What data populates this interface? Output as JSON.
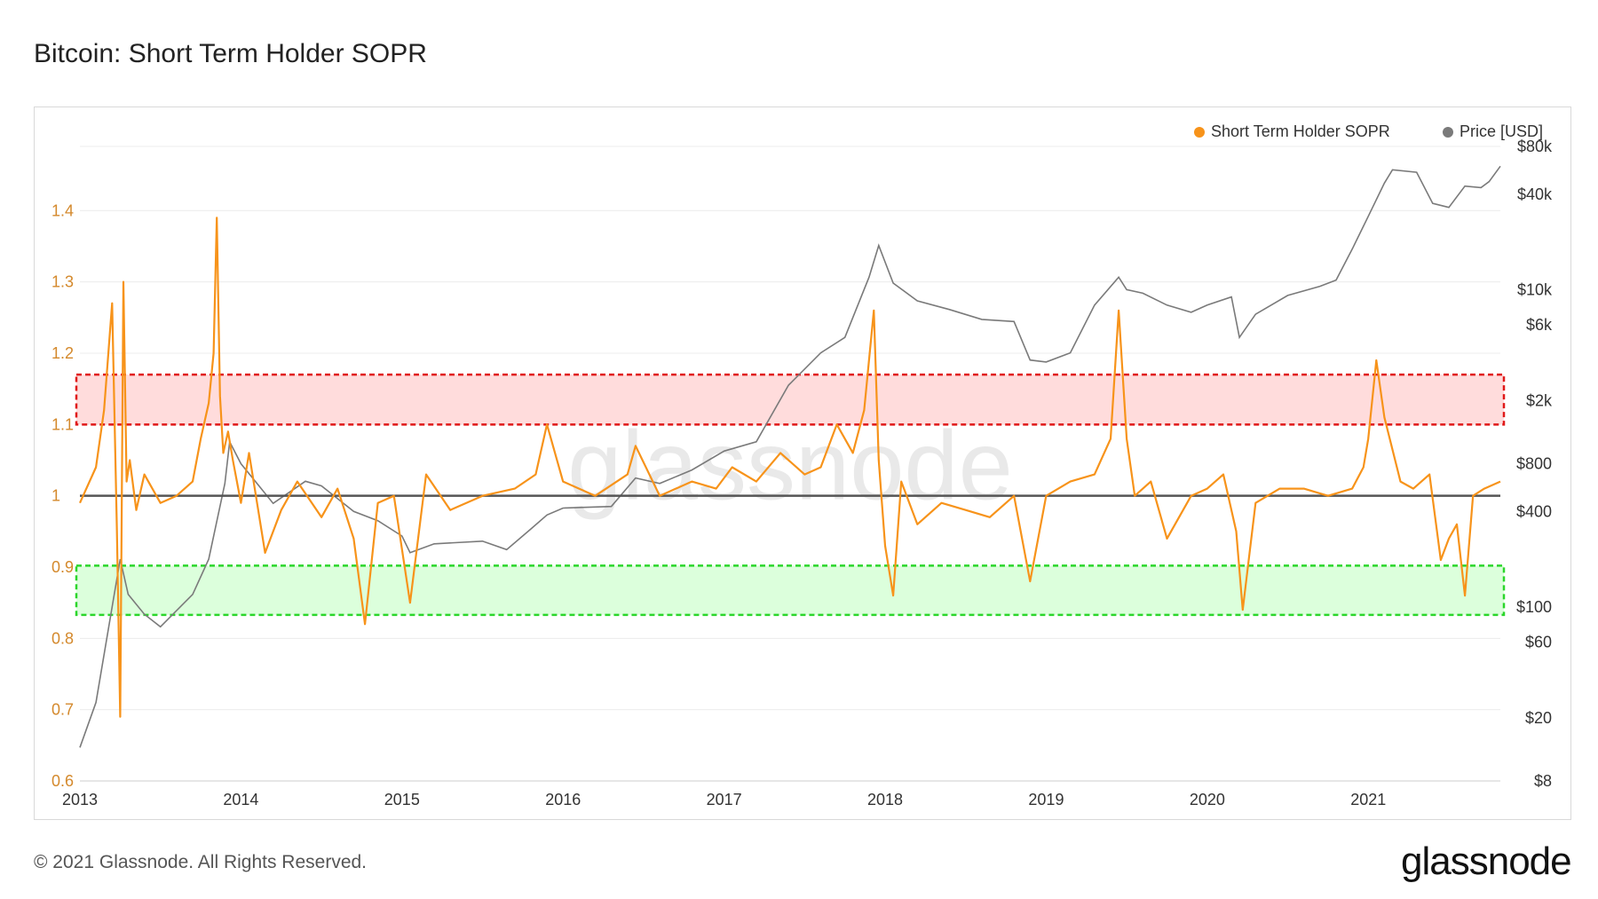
{
  "title": "Bitcoin: Short Term Holder SOPR",
  "legend": {
    "sopr_label": "Short Term Holder SOPR",
    "price_label": "Price [USD]"
  },
  "footer": {
    "copyright": "© 2021 Glassnode. All Rights Reserved.",
    "logo_text": "glassnode"
  },
  "watermark": "glassnode",
  "colors": {
    "sopr": "#f7931a",
    "price": "#7a7a7a",
    "baseline": "#555555",
    "sell_band_fill": "#ffd6d6",
    "sell_band_border": "#e01818",
    "buy_band_fill": "#d6ffd6",
    "buy_band_border": "#2bd62b",
    "grid": "#ececec"
  },
  "chart_data": {
    "type": "line",
    "title": "Bitcoin: Short Term Holder SOPR",
    "x_ticks": [
      "2013",
      "2014",
      "2015",
      "2016",
      "2017",
      "2018",
      "2019",
      "2020",
      "2021"
    ],
    "x_range": [
      2013.0,
      2021.82
    ],
    "y_left": {
      "ticks": [
        "0.6",
        "0.7",
        "0.8",
        "0.9",
        "1",
        "1.1",
        "1.2",
        "1.3",
        "1.4"
      ],
      "range": [
        0.6,
        1.49
      ]
    },
    "y_right": {
      "scale": "log",
      "ticks": [
        "$8",
        "$20",
        "$60",
        "$100",
        "$400",
        "$800",
        "$2k",
        "$6k",
        "$10k",
        "$40k",
        "$80k"
      ],
      "tick_values": [
        8,
        20,
        60,
        100,
        400,
        800,
        2000,
        6000,
        10000,
        40000,
        80000
      ],
      "range": [
        8,
        80000
      ]
    },
    "reference_line": 1.0,
    "bands": [
      {
        "name": "sell-zone",
        "y0": 1.1,
        "y1": 1.17
      },
      {
        "name": "buy-zone",
        "y0": 0.833,
        "y1": 0.902
      }
    ],
    "series": [
      {
        "name": "Short Term Holder SOPR",
        "axis": "left",
        "x": [
          2013.0,
          2013.1,
          2013.15,
          2013.2,
          2013.23,
          2013.25,
          2013.27,
          2013.29,
          2013.31,
          2013.35,
          2013.4,
          2013.5,
          2013.6,
          2013.7,
          2013.75,
          2013.8,
          2013.83,
          2013.85,
          2013.87,
          2013.89,
          2013.92,
          2013.95,
          2014.0,
          2014.05,
          2014.15,
          2014.25,
          2014.35,
          2014.5,
          2014.6,
          2014.7,
          2014.77,
          2014.85,
          2014.95,
          2015.05,
          2015.15,
          2015.3,
          2015.5,
          2015.7,
          2015.83,
          2015.9,
          2016.0,
          2016.2,
          2016.4,
          2016.45,
          2016.6,
          2016.8,
          2016.95,
          2017.05,
          2017.2,
          2017.35,
          2017.5,
          2017.6,
          2017.7,
          2017.8,
          2017.87,
          2017.93,
          2017.96,
          2018.0,
          2018.05,
          2018.1,
          2018.2,
          2018.35,
          2018.5,
          2018.65,
          2018.8,
          2018.9,
          2019.0,
          2019.15,
          2019.3,
          2019.4,
          2019.45,
          2019.5,
          2019.55,
          2019.65,
          2019.75,
          2019.9,
          2020.0,
          2020.1,
          2020.18,
          2020.22,
          2020.3,
          2020.45,
          2020.6,
          2020.75,
          2020.9,
          2020.97,
          2021.0,
          2021.05,
          2021.1,
          2021.2,
          2021.28,
          2021.38,
          2021.45,
          2021.5,
          2021.55,
          2021.6,
          2021.65,
          2021.72,
          2021.82
        ],
        "y": [
          0.99,
          1.04,
          1.12,
          1.27,
          0.95,
          0.69,
          1.3,
          1.02,
          1.05,
          0.98,
          1.03,
          0.99,
          1.0,
          1.02,
          1.08,
          1.13,
          1.2,
          1.39,
          1.14,
          1.06,
          1.09,
          1.05,
          0.99,
          1.06,
          0.92,
          0.98,
          1.02,
          0.97,
          1.01,
          0.94,
          0.82,
          0.99,
          1.0,
          0.85,
          1.03,
          0.98,
          1.0,
          1.01,
          1.03,
          1.1,
          1.02,
          1.0,
          1.03,
          1.07,
          1.0,
          1.02,
          1.01,
          1.04,
          1.02,
          1.06,
          1.03,
          1.04,
          1.1,
          1.06,
          1.12,
          1.26,
          1.05,
          0.93,
          0.86,
          1.02,
          0.96,
          0.99,
          0.98,
          0.97,
          1.0,
          0.88,
          1.0,
          1.02,
          1.03,
          1.08,
          1.26,
          1.08,
          1.0,
          1.02,
          0.94,
          1.0,
          1.01,
          1.03,
          0.95,
          0.84,
          0.99,
          1.01,
          1.01,
          1.0,
          1.01,
          1.04,
          1.08,
          1.19,
          1.11,
          1.02,
          1.01,
          1.03,
          0.91,
          0.94,
          0.96,
          0.86,
          1.0,
          1.01,
          1.02
        ]
      },
      {
        "name": "Price [USD]",
        "axis": "right",
        "x": [
          2013.0,
          2013.1,
          2013.2,
          2013.25,
          2013.3,
          2013.4,
          2013.5,
          2013.7,
          2013.8,
          2013.9,
          2013.93,
          2014.0,
          2014.1,
          2014.2,
          2014.4,
          2014.5,
          2014.7,
          2014.85,
          2015.0,
          2015.05,
          2015.2,
          2015.5,
          2015.65,
          2015.8,
          2015.9,
          2016.0,
          2016.3,
          2016.45,
          2016.6,
          2016.8,
          2017.0,
          2017.2,
          2017.4,
          2017.6,
          2017.75,
          2017.9,
          2017.96,
          2018.05,
          2018.2,
          2018.4,
          2018.6,
          2018.8,
          2018.9,
          2019.0,
          2019.15,
          2019.3,
          2019.45,
          2019.5,
          2019.6,
          2019.75,
          2019.9,
          2020.0,
          2020.15,
          2020.2,
          2020.3,
          2020.5,
          2020.7,
          2020.8,
          2020.9,
          2021.0,
          2021.1,
          2021.15,
          2021.3,
          2021.4,
          2021.5,
          2021.6,
          2021.7,
          2021.75,
          2021.82
        ],
        "y": [
          13,
          25,
          100,
          200,
          120,
          90,
          75,
          120,
          200,
          600,
          1100,
          800,
          600,
          450,
          620,
          580,
          400,
          350,
          280,
          220,
          250,
          260,
          230,
          310,
          380,
          420,
          430,
          650,
          600,
          730,
          960,
          1100,
          2500,
          4000,
          5000,
          12000,
          19000,
          11000,
          8500,
          7500,
          6500,
          6300,
          3600,
          3500,
          4000,
          8000,
          12000,
          10000,
          9500,
          8000,
          7200,
          8000,
          9000,
          5000,
          7000,
          9200,
          10500,
          11500,
          18000,
          29000,
          47000,
          57000,
          55000,
          35000,
          33000,
          45000,
          44000,
          48000,
          60000
        ]
      }
    ]
  }
}
